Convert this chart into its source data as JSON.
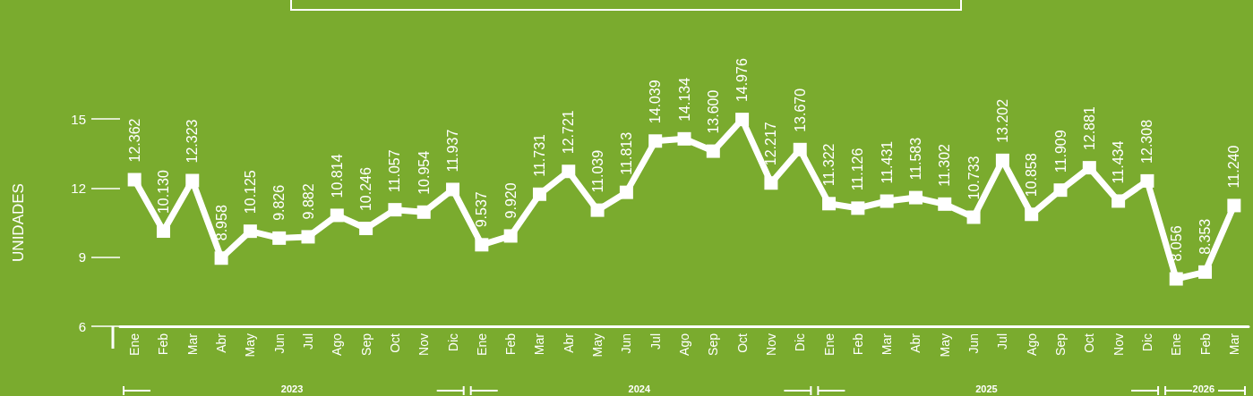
{
  "chart_data": {
    "type": "line",
    "ylabel": "UNIDADES",
    "categories": [
      "Ene",
      "Feb",
      "Mar",
      "Abr",
      "May",
      "Jun",
      "Jul",
      "Ago",
      "Sep",
      "Oct",
      "Nov",
      "Dic",
      "Ene",
      "Feb",
      "Mar",
      "Abr",
      "May",
      "Jun",
      "Jul",
      "Ago",
      "Sep",
      "Oct",
      "Nov",
      "Dic",
      "Ene",
      "Feb",
      "Mar",
      "Abr",
      "May",
      "Jun",
      "Jul",
      "Ago",
      "Sep",
      "Oct",
      "Nov",
      "Dic",
      "Ene",
      "Feb",
      "Mar"
    ],
    "series": [
      {
        "color": "#ffffff",
        "values": [
          12.362,
          10.13,
          12.323,
          8.958,
          10.125,
          9.826,
          9.882,
          10.814,
          10.246,
          11.057,
          10.954,
          11.937,
          9.537,
          9.92,
          11.731,
          12.721,
          11.039,
          11.813,
          14.039,
          14.134,
          13.6,
          14.976,
          12.217,
          13.67,
          11.322,
          11.126,
          11.431,
          11.583,
          11.302,
          10.733,
          13.202,
          10.858,
          11.909,
          12.881,
          11.434,
          12.308,
          8.056,
          8.353,
          11.24
        ],
        "value_labels": [
          "12.362",
          "10.130",
          "12.323",
          "8.958",
          "10.125",
          "9.826",
          "9.882",
          "10.814",
          "10.246",
          "11.057",
          "10.954",
          "11.937",
          "9.537",
          "9.920",
          "11.731",
          "12.721",
          "11.039",
          "11.813",
          "14.039",
          "14.134",
          "13.600",
          "14.976",
          "12.217",
          "13.670",
          "11.322",
          "11.126",
          "11.431",
          "11.583",
          "11.302",
          "10.733",
          "13.202",
          "10.858",
          "11.909",
          "12.881",
          "11.434",
          "12.308",
          "8.056",
          "8.353",
          "11.240"
        ]
      }
    ],
    "ylim": [
      6,
      15
    ],
    "yticks": [
      6,
      9,
      12,
      15
    ],
    "annotations": [
      "2023",
      "2024",
      "2025",
      "2026"
    ],
    "grid": false,
    "marker": "square",
    "line_style": "solid"
  }
}
